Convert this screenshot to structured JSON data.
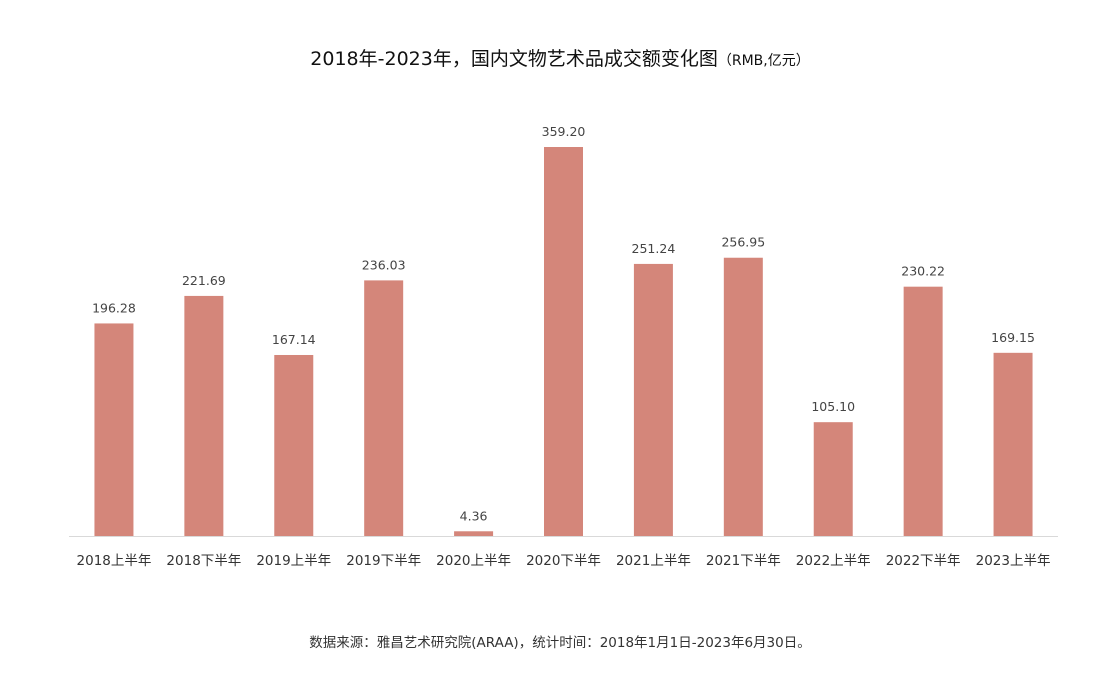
{
  "title": {
    "main": "2018年-2023年，国内文物艺术品成交额变化图",
    "unit": "（RMB,亿元）"
  },
  "source": "数据来源：雅昌艺术研究院(ARAA)，统计时间：2018年1月1日-2023年6月30日。",
  "chart_data": {
    "type": "bar",
    "title": "2018年-2023年，国内文物艺术品成交额变化图（RMB,亿元）",
    "xlabel": "",
    "ylabel": "",
    "categories": [
      "2018上半年",
      "2018下半年",
      "2019上半年",
      "2019下半年",
      "2020上半年",
      "2020下半年",
      "2021上半年",
      "2021下半年",
      "2022上半年",
      "2022下半年",
      "2023上半年"
    ],
    "values": [
      196.28,
      221.69,
      167.14,
      236.03,
      4.36,
      359.2,
      251.24,
      256.95,
      105.1,
      230.22,
      169.15
    ],
    "value_labels": [
      "196.28",
      "221.69",
      "167.14",
      "236.03",
      "4.36",
      "359.20",
      "251.24",
      "256.95",
      "105.10",
      "230.22",
      "169.15"
    ],
    "ylim": [
      0,
      359.2
    ],
    "grid": false,
    "legend": "none",
    "bar_color": "#d4867a",
    "axis_color": "#d9d9d9"
  }
}
